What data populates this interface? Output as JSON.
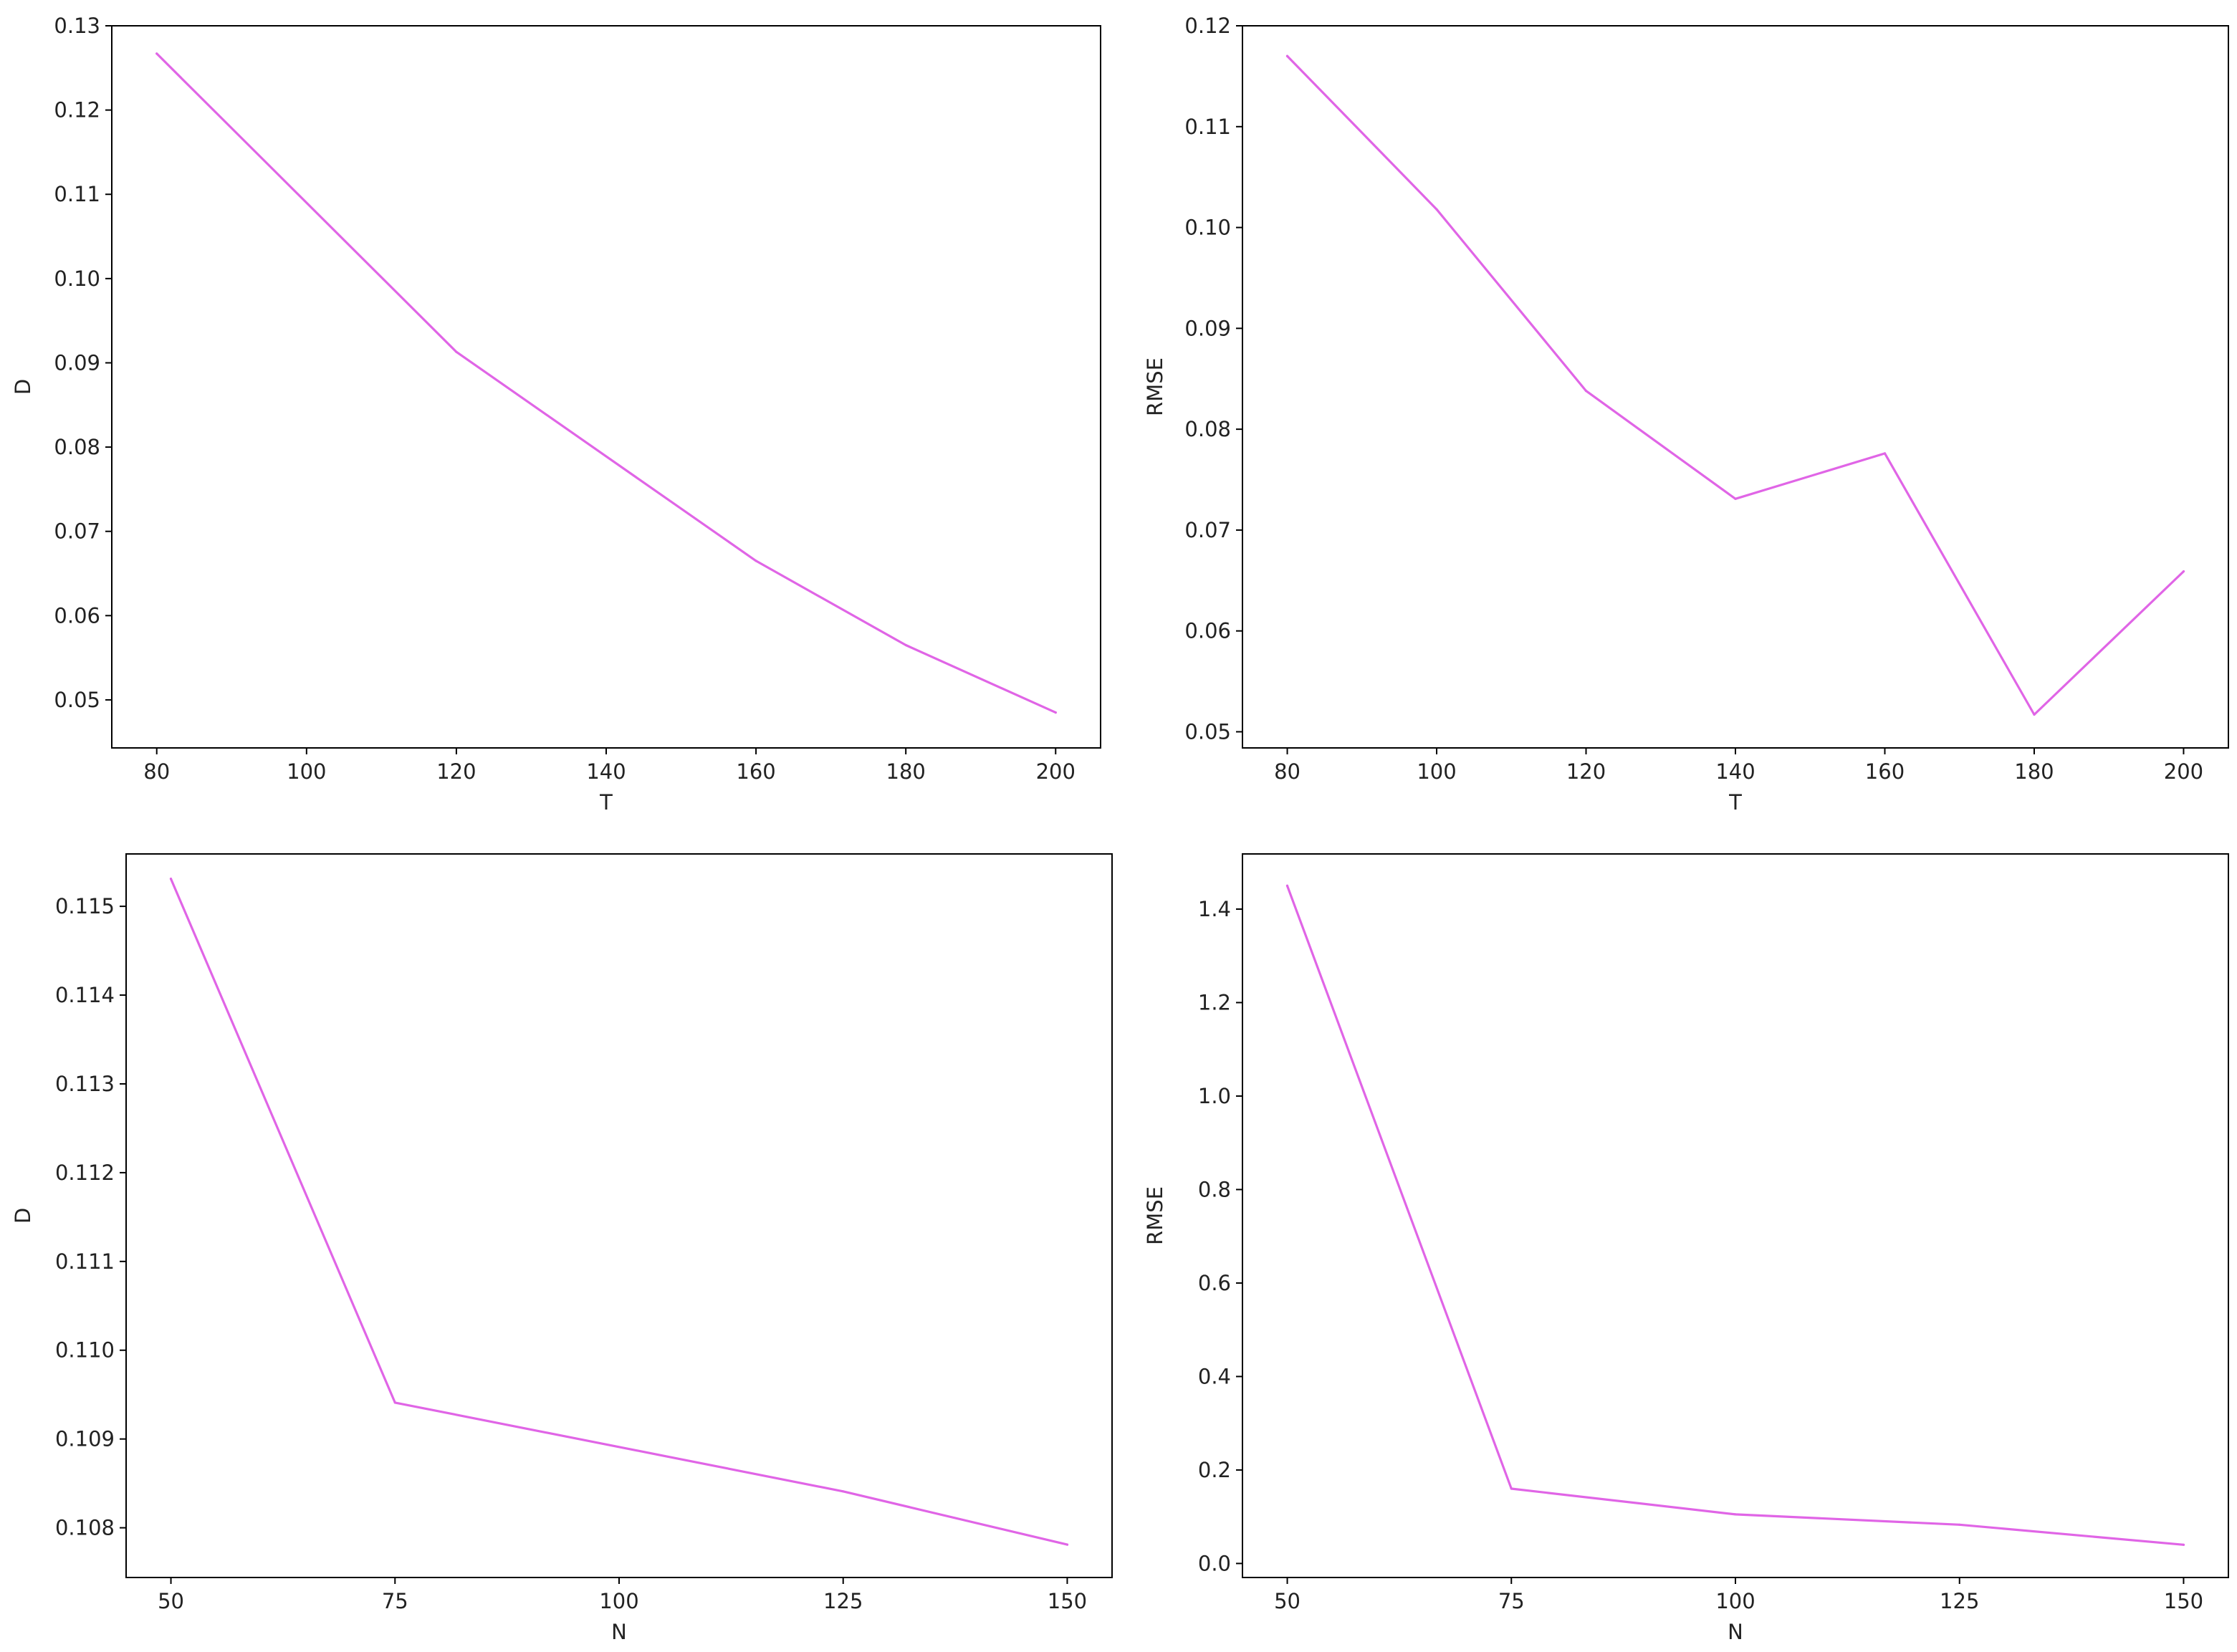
{
  "line_color": "#e065e6",
  "chart_data": [
    {
      "type": "line",
      "xlabel": "T",
      "ylabel": "D",
      "x": [
        80,
        120,
        160,
        180,
        200
      ],
      "y": [
        0.1267,
        0.0913,
        0.0665,
        0.0565,
        0.0485
      ],
      "xlim": [
        74,
        206
      ],
      "ylim": [
        0.0443,
        0.13
      ],
      "xticks": [
        80,
        100,
        120,
        140,
        160,
        180,
        200
      ],
      "xtick_labels": [
        "80",
        "100",
        "120",
        "140",
        "160",
        "180",
        "200"
      ],
      "yticks": [
        0.05,
        0.06,
        0.07,
        0.08,
        0.09,
        0.1,
        0.11,
        0.12,
        0.13
      ],
      "ytick_labels": [
        "0.05",
        "0.06",
        "0.07",
        "0.08",
        "0.09",
        "0.10",
        "0.11",
        "0.12",
        "0.13"
      ],
      "grid": false
    },
    {
      "type": "line",
      "xlabel": "T",
      "ylabel": "RMSE",
      "x": [
        80,
        100,
        120,
        140,
        160,
        180,
        200
      ],
      "y": [
        0.117,
        0.1018,
        0.0838,
        0.0731,
        0.0776,
        0.0517,
        0.0659
      ],
      "xlim": [
        74,
        206
      ],
      "ylim": [
        0.0484,
        0.12
      ],
      "xticks": [
        80,
        100,
        120,
        140,
        160,
        180,
        200
      ],
      "xtick_labels": [
        "80",
        "100",
        "120",
        "140",
        "160",
        "180",
        "200"
      ],
      "yticks": [
        0.05,
        0.06,
        0.07,
        0.08,
        0.09,
        0.1,
        0.11,
        0.12
      ],
      "ytick_labels": [
        "0.05",
        "0.06",
        "0.07",
        "0.08",
        "0.09",
        "0.10",
        "0.11",
        "0.12"
      ],
      "grid": false
    },
    {
      "type": "line",
      "xlabel": "N",
      "ylabel": "D",
      "x": [
        50,
        75,
        125,
        150
      ],
      "y": [
        0.11531,
        0.10941,
        0.10841,
        0.10781
      ],
      "xlim": [
        45,
        155
      ],
      "ylim": [
        0.10744,
        0.11559
      ],
      "xticks": [
        50,
        75,
        100,
        125,
        150
      ],
      "xtick_labels": [
        "50",
        "75",
        "100",
        "125",
        "150"
      ],
      "yticks": [
        0.108,
        0.109,
        0.11,
        0.111,
        0.112,
        0.113,
        0.114,
        0.115
      ],
      "ytick_labels": [
        "0.108",
        "0.109",
        "0.110",
        "0.111",
        "0.112",
        "0.113",
        "0.114",
        "0.115"
      ],
      "grid": false
    },
    {
      "type": "line",
      "xlabel": "N",
      "ylabel": "RMSE",
      "x": [
        50,
        75,
        100,
        125,
        150
      ],
      "y": [
        1.45,
        0.16,
        0.105,
        0.083,
        0.04
      ],
      "xlim": [
        45,
        155
      ],
      "ylim": [
        -0.03,
        1.518
      ],
      "xticks": [
        50,
        75,
        100,
        125,
        150
      ],
      "xtick_labels": [
        "50",
        "75",
        "100",
        "125",
        "150"
      ],
      "yticks": [
        0.0,
        0.2,
        0.4,
        0.6,
        0.8,
        1.0,
        1.2,
        1.4
      ],
      "ytick_labels": [
        "0.0",
        "0.2",
        "0.4",
        "0.6",
        "0.8",
        "1.0",
        "1.2",
        "1.4"
      ],
      "grid": false
    }
  ]
}
